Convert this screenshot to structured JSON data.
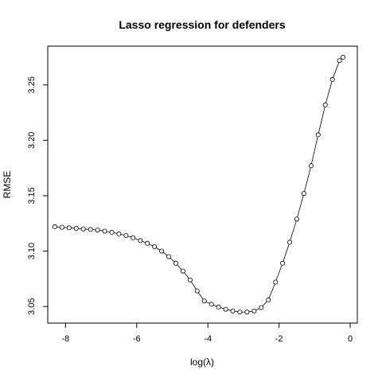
{
  "chart_data": {
    "type": "line",
    "title": "Lasso regression for defenders",
    "xlabel": "log(λ)",
    "ylabel": "RMSE",
    "xlim": [
      -8.5,
      0.2
    ],
    "ylim": [
      3.035,
      3.285
    ],
    "x_ticks": [
      -8,
      -6,
      -4,
      -2,
      0
    ],
    "x_tick_labels": [
      "-8",
      "-6",
      "-4",
      "-2",
      "0"
    ],
    "y_ticks": [
      3.05,
      3.1,
      3.15,
      3.2,
      3.25
    ],
    "y_tick_labels": [
      "3.05",
      "3.10",
      "3.15",
      "3.20",
      "3.25"
    ],
    "grid": false,
    "markers": "open-circle",
    "series": [
      {
        "x": [
          -8.3,
          -8.1,
          -7.9,
          -7.7,
          -7.5,
          -7.3,
          -7.1,
          -6.9,
          -6.7,
          -6.5,
          -6.3,
          -6.1,
          -5.9,
          -5.7,
          -5.5,
          -5.3,
          -5.1,
          -4.9,
          -4.7,
          -4.5,
          -4.3,
          -4.1,
          -3.9,
          -3.7,
          -3.5,
          -3.3,
          -3.1,
          -2.9,
          -2.7,
          -2.5,
          -2.3,
          -2.1,
          -1.9,
          -1.7,
          -1.5,
          -1.3,
          -1.1,
          -0.9,
          -0.7,
          -0.5,
          -0.3,
          -0.2
        ],
        "y": [
          3.122,
          3.1215,
          3.121,
          3.1205,
          3.12,
          3.1195,
          3.119,
          3.118,
          3.117,
          3.1155,
          3.114,
          3.112,
          3.1095,
          3.107,
          3.104,
          3.1,
          3.095,
          3.089,
          3.082,
          3.074,
          3.064,
          3.055,
          3.052,
          3.0495,
          3.0475,
          3.046,
          3.045,
          3.045,
          3.046,
          3.049,
          3.056,
          3.072,
          3.089,
          3.108,
          3.129,
          3.152,
          3.177,
          3.205,
          3.232,
          3.255,
          3.272,
          3.275
        ]
      }
    ]
  }
}
